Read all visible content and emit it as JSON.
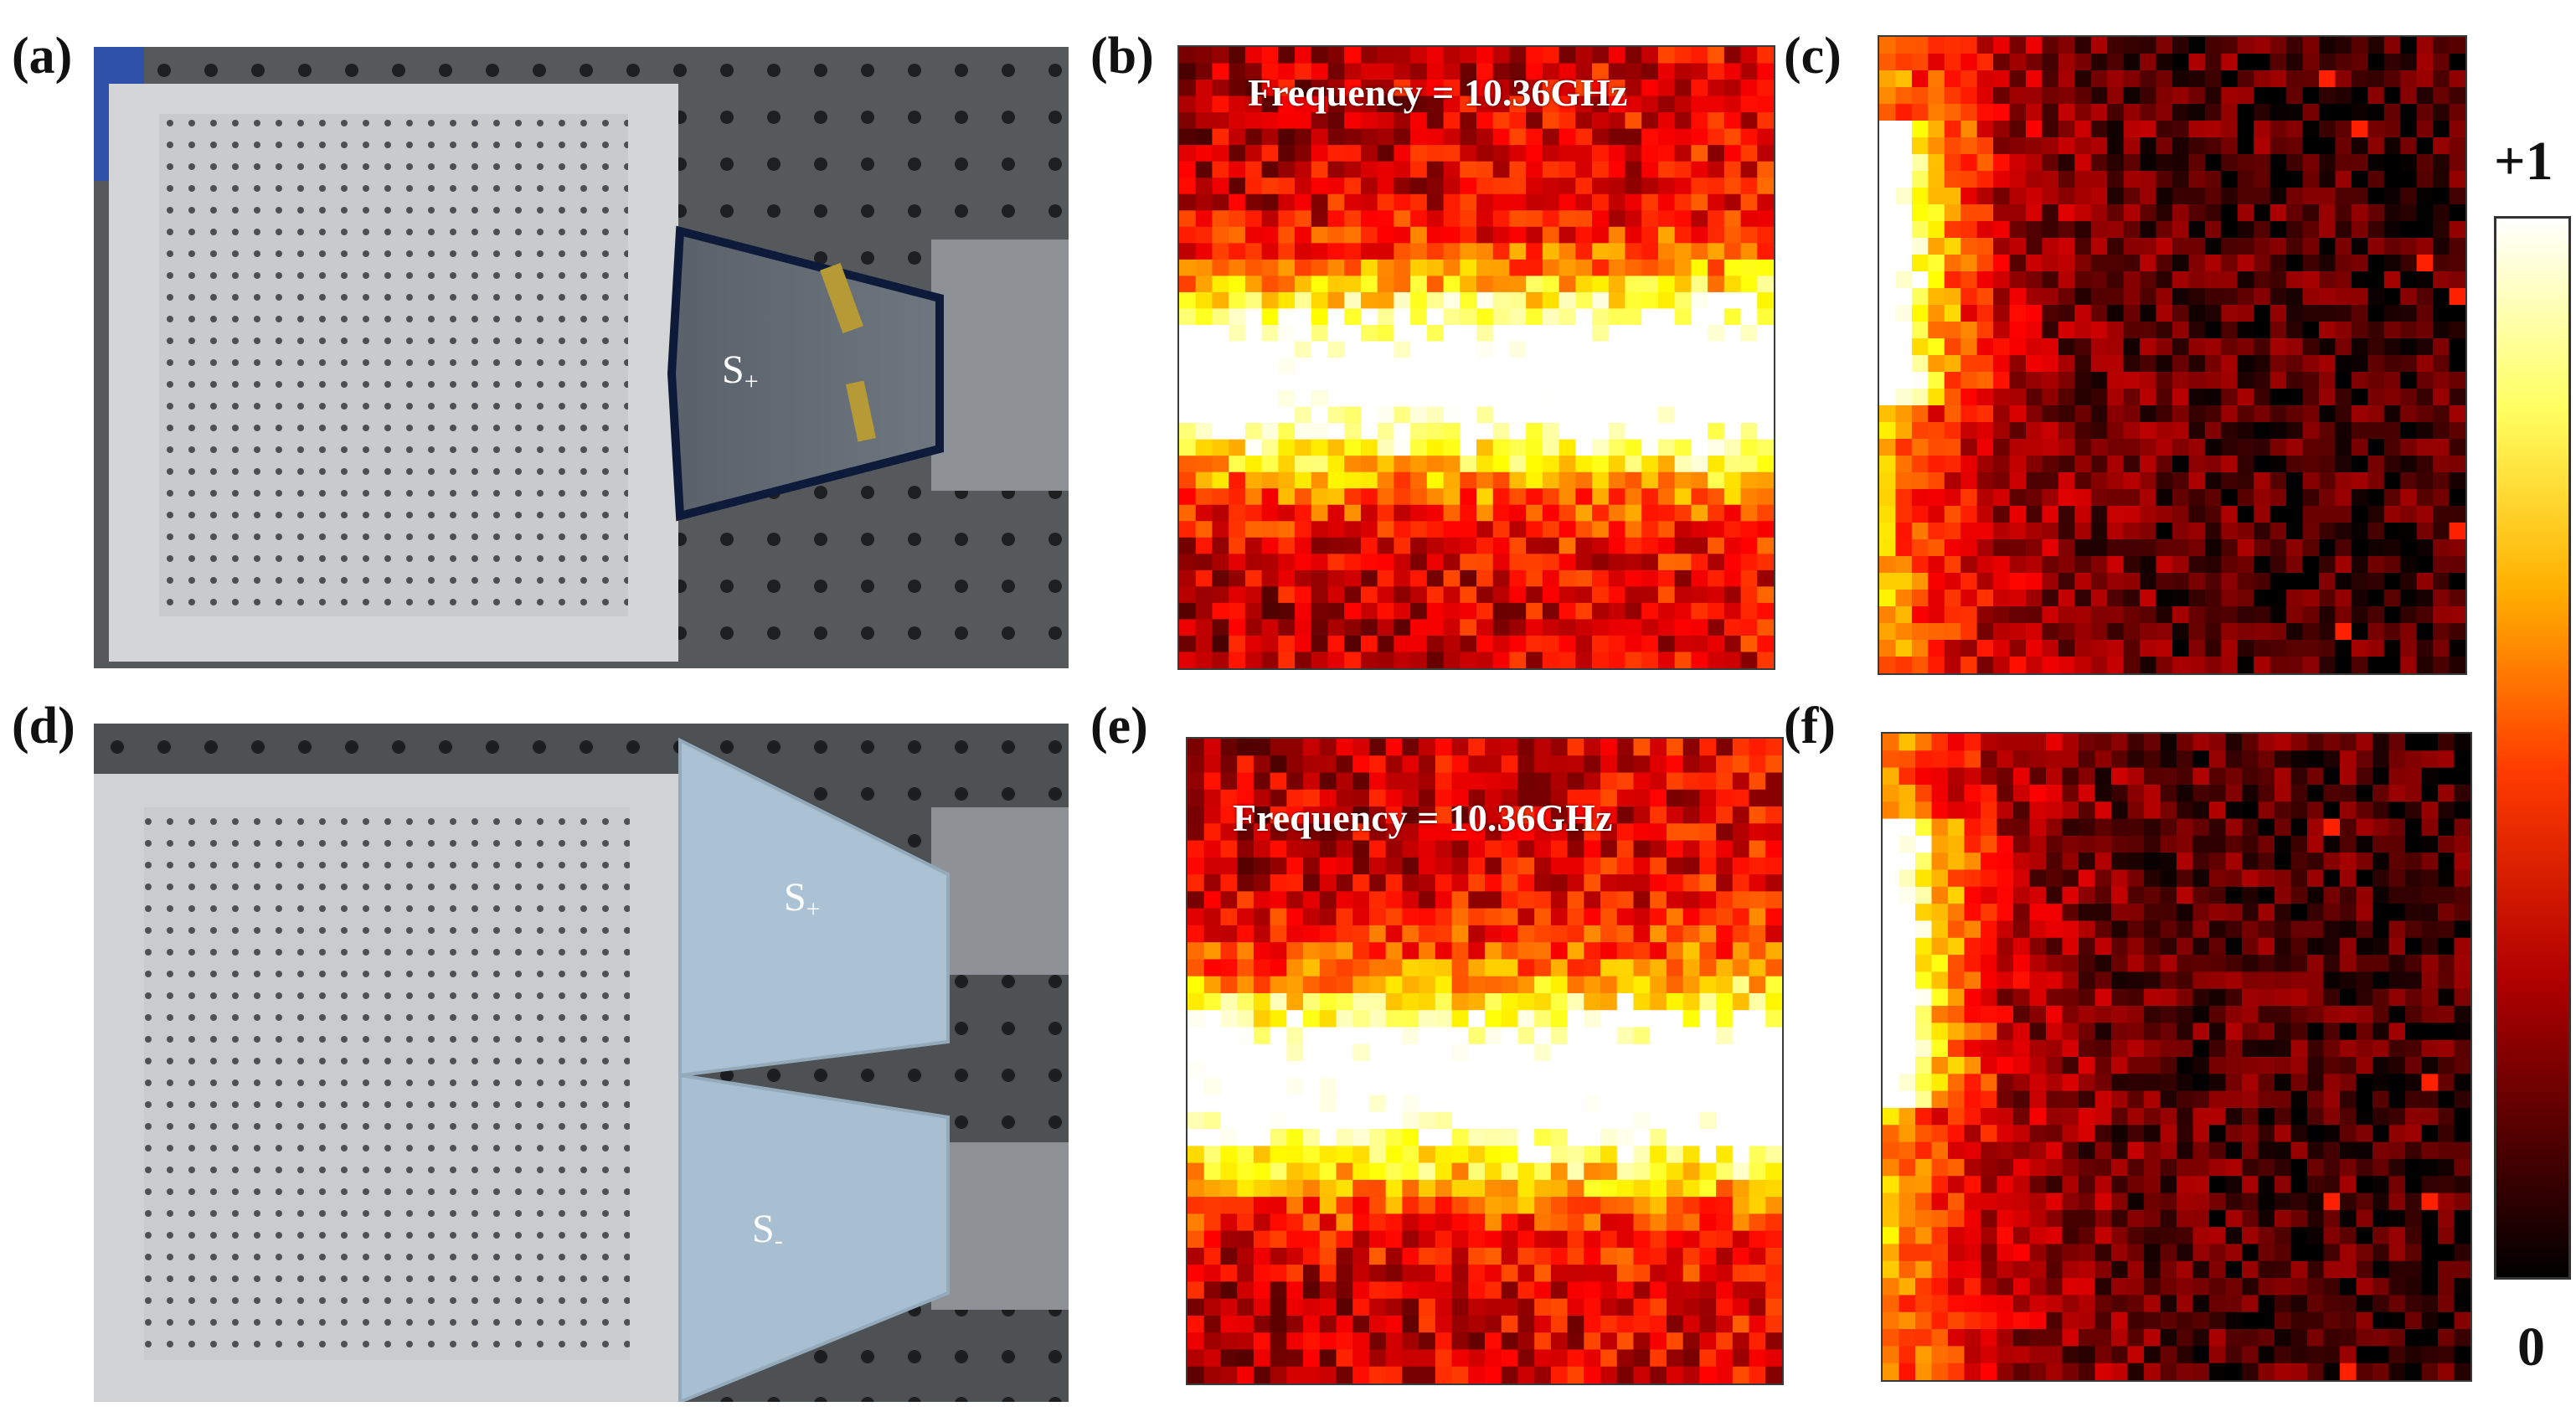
{
  "figure": {
    "panels": [
      {
        "label": "(a)"
      },
      {
        "label": "(b)",
        "annotation": "Frequency = 10.36GHz"
      },
      {
        "label": "(c)"
      },
      {
        "label": "(d)"
      },
      {
        "label": "(e)",
        "annotation": "Frequency = 10.36GHz"
      },
      {
        "label": "(f)"
      }
    ],
    "horn_labels": {
      "a_s_plus": {
        "main": "S",
        "sub": "+"
      },
      "d_s_plus": {
        "main": "S",
        "sub": "+"
      },
      "d_s_minus": {
        "main": "S",
        "sub": "-"
      }
    },
    "colorbar": {
      "max_label": "+1",
      "min_label": "0"
    },
    "colors": {
      "photo_background": "#55585b",
      "plate": "#c9cbcc",
      "horn_a": "#5e6670",
      "horn_d": "#a9c1d2",
      "heat_low": "#000000",
      "heat_high": "#ffffff"
    }
  },
  "chart_data": [
    {
      "panel": "b",
      "type": "heatmap",
      "annotation": "Frequency = 10.36GHz",
      "value_range": [
        0,
        1
      ],
      "pattern": "bright guided band across full width"
    },
    {
      "panel": "c",
      "type": "heatmap",
      "value_range": [
        0,
        1
      ],
      "pattern": "bright spots near left edge, decays to the right"
    },
    {
      "panel": "e",
      "type": "heatmap",
      "annotation": "Frequency = 10.36GHz",
      "value_range": [
        0,
        1
      ],
      "pattern": "bright guided band across full width"
    },
    {
      "panel": "f",
      "type": "heatmap",
      "value_range": [
        0,
        1
      ],
      "pattern": "bright spots near left edge, decays to the right"
    }
  ]
}
